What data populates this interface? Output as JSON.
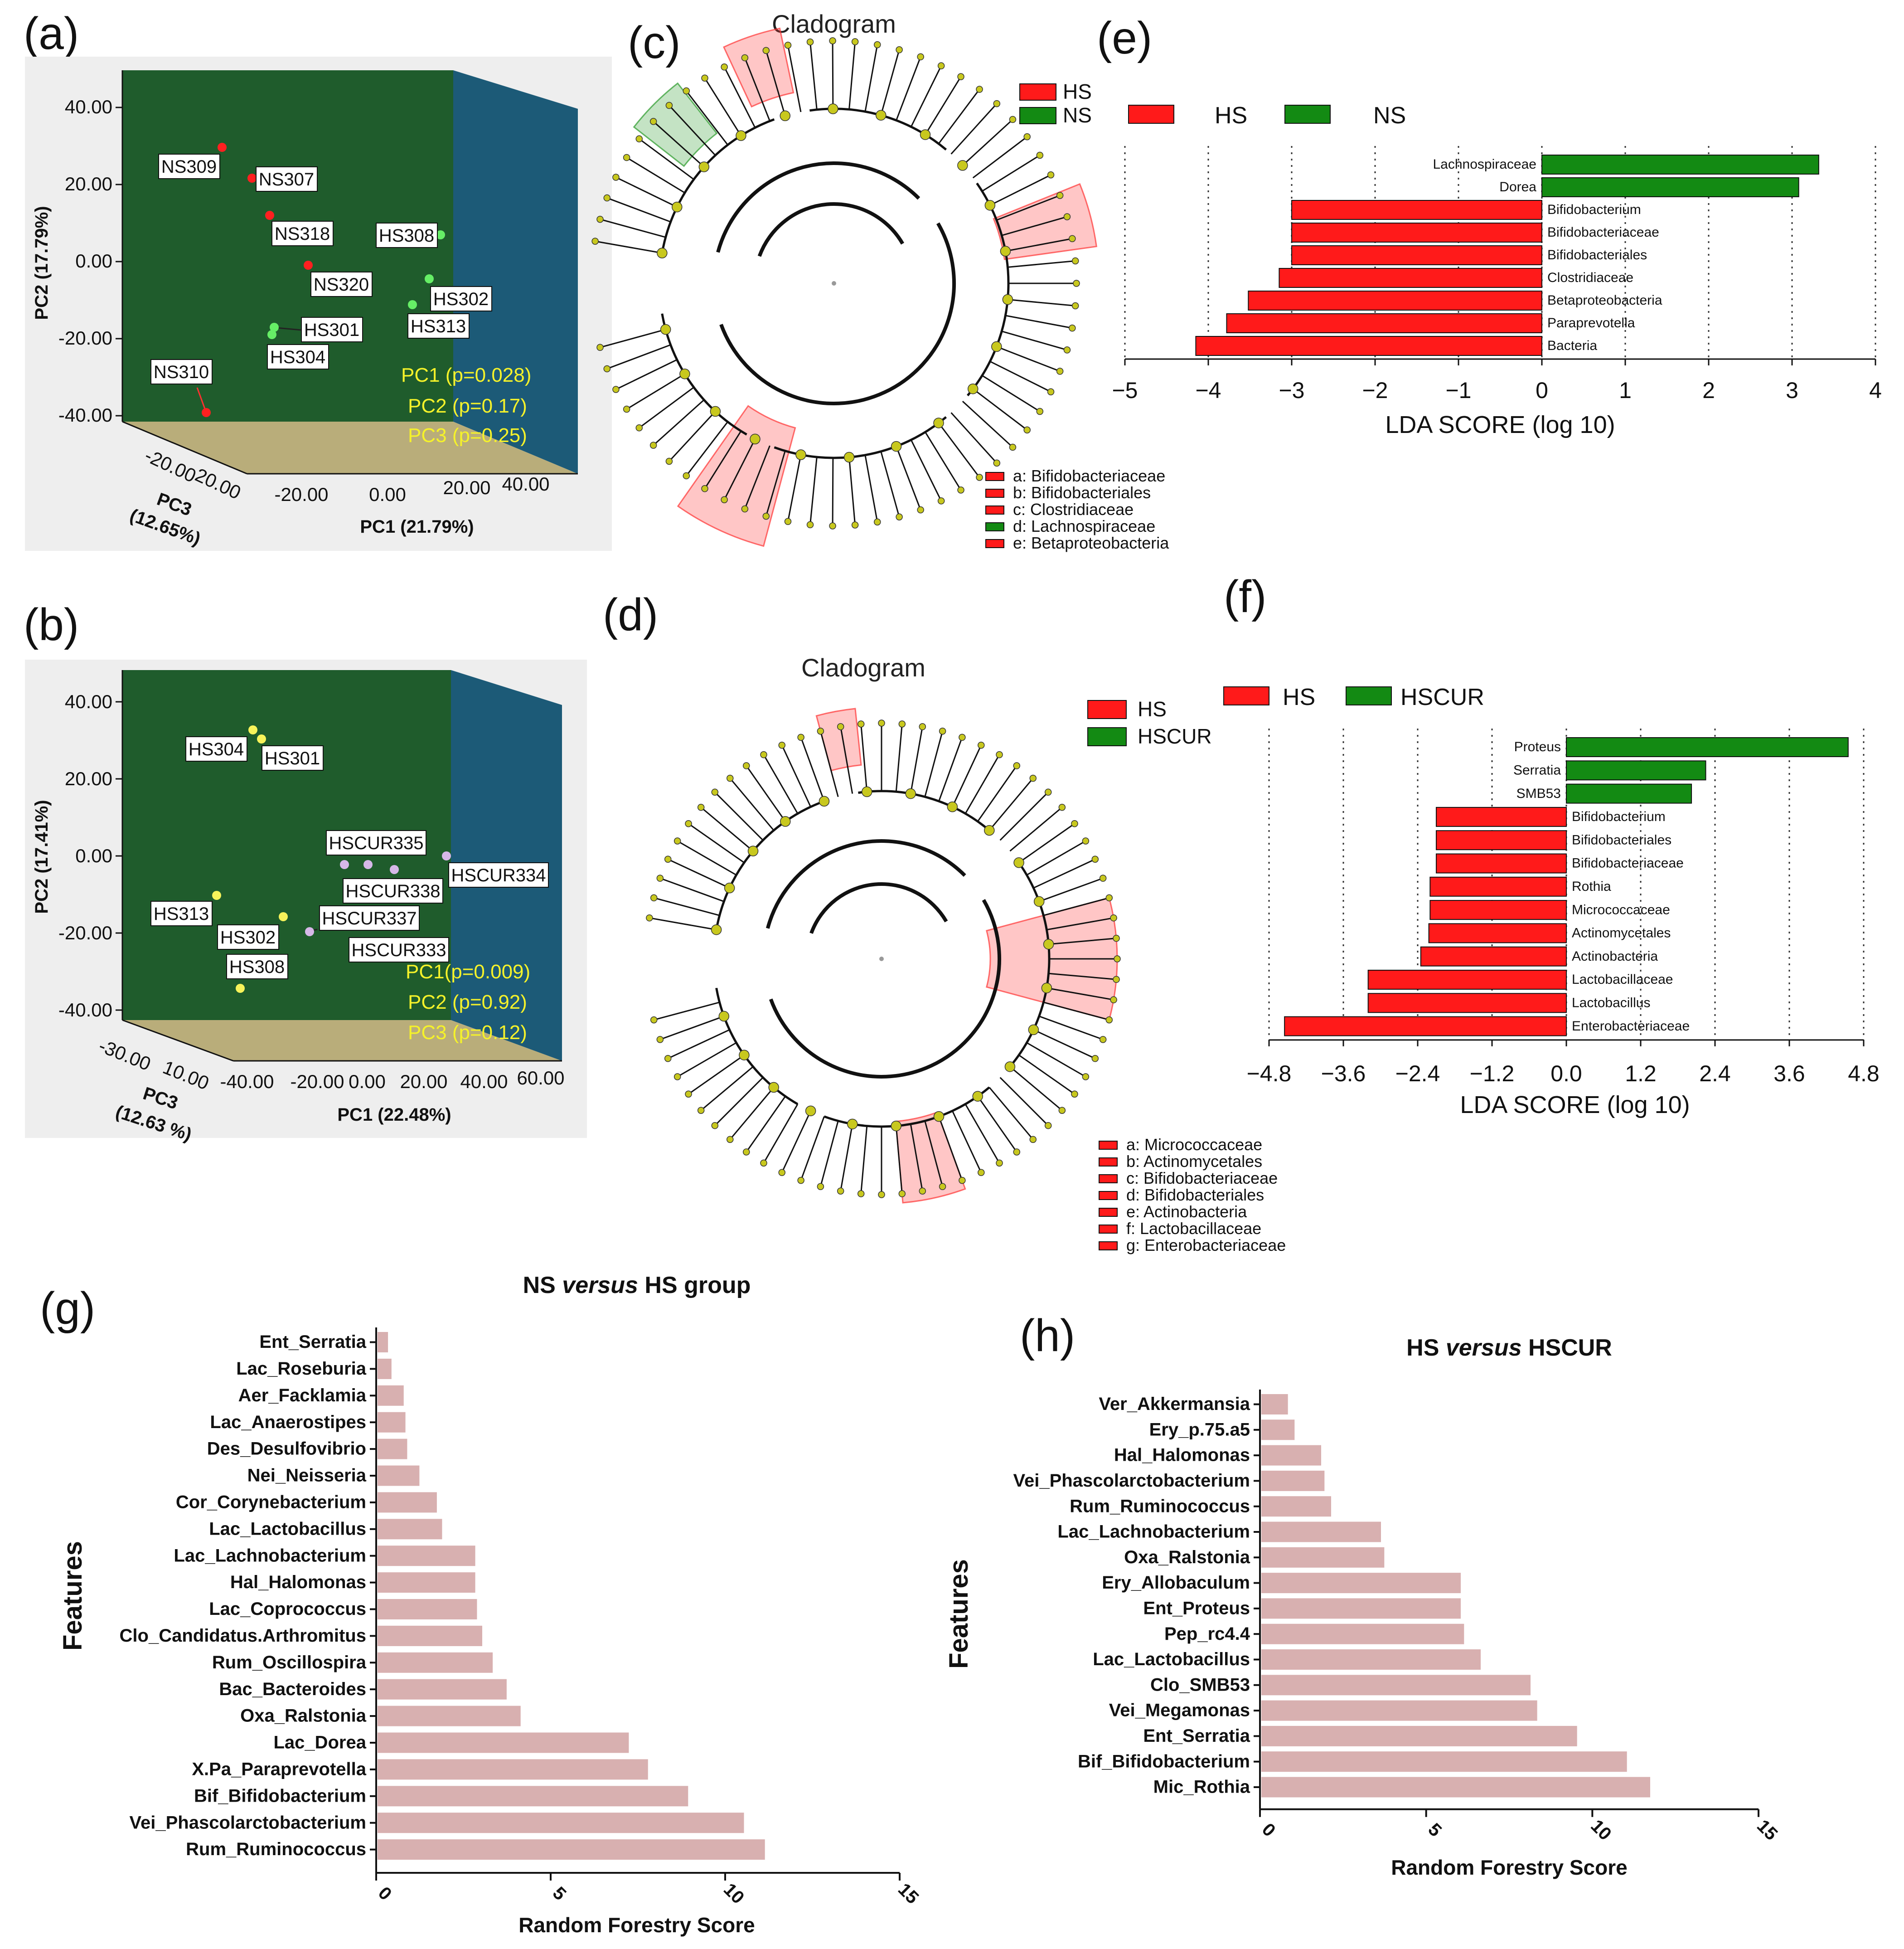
{
  "panel_labels": [
    "(a)",
    "(b)",
    "(c)",
    "(d)",
    "(e)",
    "(f)",
    "(g)",
    "(h)"
  ],
  "colors": {
    "hs_red": "#ff1a1a",
    "ns_green": "#138a13",
    "rf_bar": "#d8b0b0",
    "pca_floor": "#b9ad7a",
    "pca_back": "#1f5c2c",
    "pca_side": "#1c5a77",
    "yellow_text": "#f5f22a"
  },
  "chart_data": [
    {
      "id": "a",
      "type": "scatter",
      "xlabel": "PC1 (21.79%)",
      "ylabel": "PC2 (17.79%)",
      "zlabel_line1": "PC3",
      "zlabel_line2": "(12.65%)",
      "y_ticks": [
        "40.00",
        "20.00",
        "0.00",
        "-20.00",
        "-40.00"
      ],
      "ylim": [
        -40,
        40
      ],
      "x_ticks": [
        "-20.00",
        "0.00",
        "20.00",
        "40.00"
      ],
      "z_ticks": [
        "-20.00",
        "20.00"
      ],
      "annotations": [
        "PC1 (p=0.028)",
        "PC2 (p=0.17)",
        "PC3 (p=0.25)"
      ],
      "points": [
        {
          "label": "NS309",
          "pc2": 29,
          "group": "NS"
        },
        {
          "label": "NS307",
          "pc2": 21,
          "group": "NS"
        },
        {
          "label": "NS318",
          "pc2": 12,
          "group": "NS"
        },
        {
          "label": "NS320",
          "pc2": -1,
          "group": "NS"
        },
        {
          "label": "NS310",
          "pc2": -40,
          "group": "NS"
        },
        {
          "label": "HS308",
          "pc2": 7,
          "group": "HS"
        },
        {
          "label": "HS302",
          "pc2": -5,
          "group": "HS"
        },
        {
          "label": "HS313",
          "pc2": -11,
          "group": "HS"
        },
        {
          "label": "HS301",
          "pc2": -17,
          "group": "HS"
        },
        {
          "label": "HS304",
          "pc2": -19,
          "group": "HS"
        }
      ]
    },
    {
      "id": "b",
      "type": "scatter",
      "xlabel": "PC1 (22.48%)",
      "ylabel": "PC2 (17.41%)",
      "zlabel_line1": "PC3",
      "zlabel_line2": "(12.63 %)",
      "y_ticks": [
        "40.00",
        "20.00",
        "0.00",
        "-20.00",
        "-40.00"
      ],
      "ylim": [
        -40,
        40
      ],
      "x_ticks": [
        "-40.00",
        "-20.00",
        "0.00",
        "20.00",
        "40.00",
        "60.00"
      ],
      "z_ticks": [
        "-30.00",
        "10.00"
      ],
      "annotations": [
        "PC1(p=0.009)",
        "PC2 (p=0.92)",
        "PC3 (p=0.12)"
      ],
      "points": [
        {
          "label": "HS304",
          "pc2": 33,
          "group": "HS"
        },
        {
          "label": "HS301",
          "pc2": 30,
          "group": "HS"
        },
        {
          "label": "HSCUR335",
          "pc2": -3,
          "group": "HSCUR"
        },
        {
          "label": "HSCUR338",
          "pc2": -4,
          "group": "HSCUR"
        },
        {
          "label": "HSCUR334",
          "pc2": -1,
          "group": "HSCUR"
        },
        {
          "label": "HSCUR337",
          "pc2": -19,
          "group": "HSCUR"
        },
        {
          "label": "HSCUR333",
          "pc2": -22,
          "group": "HSCUR"
        },
        {
          "label": "HS313",
          "pc2": -10,
          "group": "HS"
        },
        {
          "label": "HS302",
          "pc2": -16,
          "group": "HS"
        },
        {
          "label": "HS308",
          "pc2": -35,
          "group": "HS"
        }
      ]
    },
    {
      "id": "c",
      "type": "cladogram",
      "title": "Cladogram",
      "legend": [
        "HS",
        "NS"
      ],
      "key": [
        {
          "text": "a: Bifidobacteriaceae",
          "group": "HS"
        },
        {
          "text": "b: Bifidobacteriales",
          "group": "HS"
        },
        {
          "text": "c: Clostridiaceae",
          "group": "HS"
        },
        {
          "text": "d: Lachnospiraceae",
          "group": "NS"
        },
        {
          "text": "e: Betaproteobacteria",
          "group": "HS"
        }
      ]
    },
    {
      "id": "d",
      "type": "cladogram",
      "title": "Cladogram",
      "legend": [
        "HS",
        "HSCUR"
      ],
      "key": [
        {
          "text": "a: Micrococcaceae",
          "group": "HS"
        },
        {
          "text": "b: Actinomycetales",
          "group": "HS"
        },
        {
          "text": "c: Bifidobacteriaceae",
          "group": "HS"
        },
        {
          "text": "d: Bifidobacteriales",
          "group": "HS"
        },
        {
          "text": "e: Actinobacteria",
          "group": "HS"
        },
        {
          "text": " f: Lactobacillaceae",
          "group": "HS"
        },
        {
          "text": "g: Enterobacteriaceae",
          "group": "HS"
        }
      ]
    },
    {
      "id": "e",
      "type": "bar",
      "orientation": "horizontal",
      "xlabel": "LDA SCORE (log 10)",
      "xlim": [
        -5,
        4
      ],
      "x_ticks": [
        "−5",
        "−4",
        "−3",
        "−2",
        "−1",
        "0",
        "1",
        "2",
        "3",
        "4"
      ],
      "legend": [
        "HS",
        "NS"
      ],
      "categories": [
        "Lachnospiraceae",
        "Dorea",
        "Bifidobacterium",
        "Bifidobacteriaceae",
        "Bifidobacteriales",
        "Clostridiaceae",
        "Betaproteobacteria",
        "Paraprevotella",
        "Bacteria"
      ],
      "values": [
        3.32,
        3.08,
        -3.0,
        -3.0,
        -3.0,
        -3.15,
        -3.52,
        -3.78,
        -4.15
      ],
      "groups": [
        "NS",
        "NS",
        "HS",
        "HS",
        "HS",
        "HS",
        "HS",
        "HS",
        "HS"
      ]
    },
    {
      "id": "f",
      "type": "bar",
      "orientation": "horizontal",
      "xlabel": "LDA SCORE (log 10)",
      "xlim": [
        -4.8,
        4.8
      ],
      "x_ticks": [
        "−4.8",
        "−3.6",
        "−2.4",
        "−1.2",
        "0.0",
        "1.2",
        "2.4",
        "3.6",
        "4.8"
      ],
      "legend": [
        "HS",
        "HSCUR"
      ],
      "categories": [
        "Proteus",
        "Serratia",
        "SMB53",
        "Bifidobacterium",
        "Bifidobacteriales",
        "Bifidobacteriaceae",
        "Rothia",
        "Micrococcaceae",
        "Actinomycetales",
        "Actinobacteria",
        "Lactobacillaceae",
        "Lactobacillus",
        "Enterobacteriaceae"
      ],
      "values": [
        4.55,
        2.25,
        2.02,
        -2.1,
        -2.1,
        -2.1,
        -2.2,
        -2.2,
        -2.22,
        -2.35,
        -3.2,
        -3.2,
        -4.55
      ],
      "groups": [
        "HSCUR",
        "HSCUR",
        "HSCUR",
        "HS",
        "HS",
        "HS",
        "HS",
        "HS",
        "HS",
        "HS",
        "HS",
        "HS",
        "HS"
      ]
    },
    {
      "id": "g",
      "type": "bar",
      "orientation": "horizontal",
      "title_parts": [
        "NS ",
        "versus",
        " HS group"
      ],
      "xlabel": "Random Forestry Score",
      "ylabel": "Features",
      "xlim": [
        0,
        15
      ],
      "x_ticks": [
        "0",
        "5",
        "10",
        "15"
      ],
      "categories": [
        "Ent_Serratia",
        "Lac_Roseburia",
        "Aer_Facklamia",
        "Lac_Anaerostipes",
        "Des_Desulfovibrio",
        "Nei_Neisseria",
        "Cor_Corynebacterium",
        "Lac_Lactobacillus",
        "Lac_Lachnobacterium",
        "Hal_Halomonas",
        "Lac_Coprococcus",
        "Clo_Candidatus.Arthromitus",
        "Rum_Oscillospira",
        "Bac_Bacteroides",
        "Oxa_Ralstonia",
        "Lac_Dorea",
        "X.Pa_Paraprevotella",
        "Bif_Bifidobacterium",
        "Vei_Phascolarctobacterium",
        "Rum_Ruminococcus"
      ],
      "values": [
        0.3,
        0.4,
        0.75,
        0.8,
        0.85,
        1.2,
        1.7,
        1.85,
        2.8,
        2.8,
        2.85,
        3.0,
        3.3,
        3.7,
        4.1,
        7.2,
        7.75,
        8.9,
        10.5,
        11.1
      ]
    },
    {
      "id": "h",
      "type": "bar",
      "orientation": "horizontal",
      "title_parts": [
        "HS ",
        "versus",
        " HSCUR"
      ],
      "xlabel": "Random Forestry Score",
      "ylabel": "Features",
      "xlim": [
        0,
        15
      ],
      "x_ticks": [
        "0",
        "5",
        "10",
        "15"
      ],
      "categories": [
        "Ver_Akkermansia",
        "Ery_p.75.a5",
        "Hal_Halomonas",
        "Vei_Phascolarctobacterium",
        "Rum_Ruminococcus",
        "Lac_Lachnobacterium",
        "Oxa_Ralstonia",
        "Ery_Allobaculum",
        "Ent_Proteus",
        "Pep_rc4.4",
        "Lac_Lactobacillus",
        "Clo_SMB53",
        "Vei_Megamonas",
        "Ent_Serratia",
        "Bif_Bifidobacterium",
        "Mic_Rothia"
      ],
      "values": [
        0.8,
        1.0,
        1.8,
        1.9,
        2.1,
        3.6,
        3.7,
        6.0,
        6.0,
        6.1,
        6.6,
        8.1,
        8.3,
        9.5,
        11.0,
        11.7
      ]
    }
  ]
}
